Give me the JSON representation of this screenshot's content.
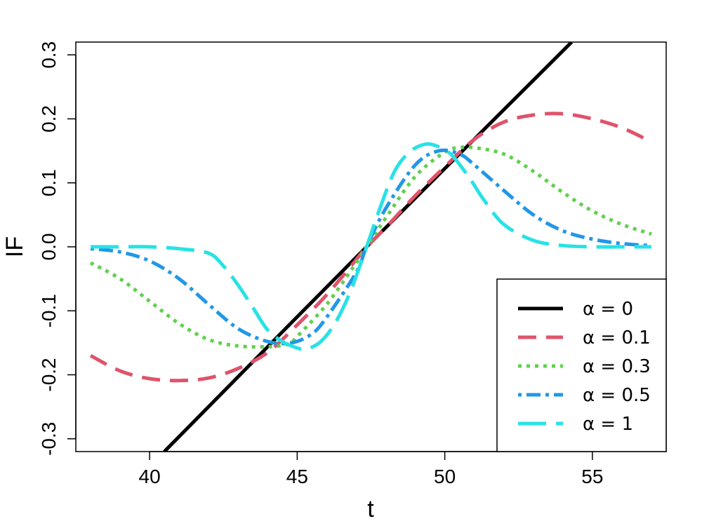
{
  "chart_data": {
    "type": "line",
    "xlabel": "t",
    "ylabel": "IF",
    "xlim": [
      37.5,
      57.5
    ],
    "ylim": [
      -0.32,
      0.32
    ],
    "xticks": [
      "40",
      "45",
      "50",
      "55"
    ],
    "xtick_values": [
      40,
      45,
      50,
      55
    ],
    "yticks": [
      "-0.3",
      "-0.2",
      "-0.1",
      "0.0",
      "0.1",
      "0.2",
      "0.3"
    ],
    "ytick_values": [
      -0.3,
      -0.2,
      -0.1,
      0.0,
      0.1,
      0.2,
      0.3
    ],
    "legend_position": "bottom-right",
    "grid": false,
    "series": [
      {
        "name": "α = 0",
        "color": "#000000",
        "dash": "solid",
        "x": [
          40.5,
          47.35,
          54.3
        ],
        "y": [
          -0.32,
          0.0,
          0.32
        ]
      },
      {
        "name": "α = 0.1",
        "color": "#DF536B",
        "dash": "dashed",
        "x": [
          38,
          39,
          40,
          41,
          42,
          43,
          44,
          45,
          46,
          47,
          47.35,
          48,
          49,
          50,
          51,
          52,
          53,
          54,
          55,
          56,
          57
        ],
        "y": [
          -0.17,
          -0.194,
          -0.206,
          -0.209,
          -0.205,
          -0.19,
          -0.165,
          -0.122,
          -0.075,
          -0.02,
          0.0,
          0.03,
          0.08,
          0.125,
          0.168,
          0.195,
          0.206,
          0.208,
          0.2,
          0.186,
          0.164
        ]
      },
      {
        "name": "α = 0.3",
        "color": "#61D04F",
        "dash": "dotted",
        "x": [
          38,
          39,
          40,
          41,
          42,
          43,
          44,
          44.7,
          45,
          46,
          47,
          47.35,
          48,
          49,
          50,
          50.5,
          51,
          52,
          53,
          54,
          55,
          56,
          57
        ],
        "y": [
          -0.025,
          -0.05,
          -0.085,
          -0.12,
          -0.145,
          -0.155,
          -0.156,
          -0.152,
          -0.14,
          -0.09,
          -0.025,
          0.0,
          0.045,
          0.11,
          0.148,
          0.155,
          0.155,
          0.145,
          0.118,
          0.085,
          0.056,
          0.035,
          0.02
        ]
      },
      {
        "name": "α = 0.5",
        "color": "#2297E6",
        "dash": "dotdash",
        "x": [
          38,
          39,
          40,
          41,
          42,
          43,
          44,
          44.8,
          45.5,
          46,
          47,
          47.35,
          48,
          49,
          49.8,
          50.5,
          51,
          52,
          53,
          54,
          55,
          56,
          57
        ],
        "y": [
          -0.003,
          -0.008,
          -0.022,
          -0.05,
          -0.09,
          -0.128,
          -0.148,
          -0.15,
          -0.136,
          -0.11,
          -0.04,
          0.0,
          0.06,
          0.128,
          0.15,
          0.145,
          0.128,
          0.088,
          0.05,
          0.025,
          0.012,
          0.005,
          0.002
        ]
      },
      {
        "name": "α = 1",
        "color": "#28E2E5",
        "dash": "longdash",
        "x": [
          38,
          39,
          40,
          41,
          42,
          42.5,
          43,
          43.5,
          44,
          44.5,
          45,
          45.3,
          45.8,
          46.3,
          46.8,
          47.35,
          47.8,
          48.3,
          48.8,
          49.3,
          49.7,
          50.2,
          50.8,
          51.3,
          52,
          53,
          54,
          55,
          56,
          57
        ],
        "y": [
          0.0,
          0.0,
          -0.0,
          -0.003,
          -0.01,
          -0.03,
          -0.06,
          -0.095,
          -0.13,
          -0.148,
          -0.158,
          -0.16,
          -0.148,
          -0.118,
          -0.07,
          0.0,
          0.06,
          0.118,
          0.148,
          0.16,
          0.158,
          0.145,
          0.11,
          0.075,
          0.035,
          0.01,
          0.002,
          0.0,
          0.0,
          0.0
        ]
      }
    ]
  }
}
